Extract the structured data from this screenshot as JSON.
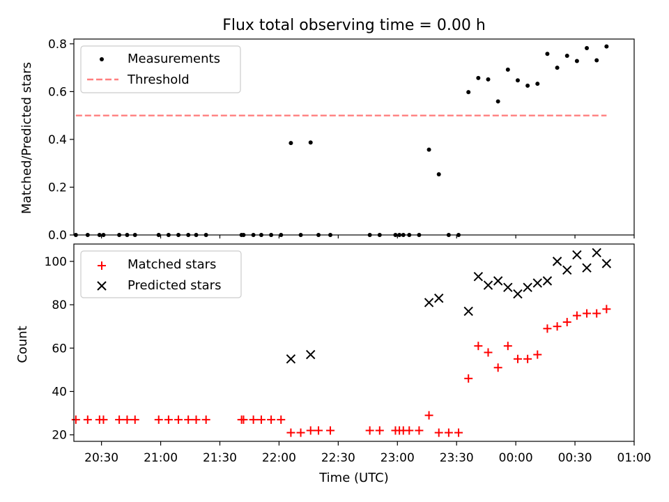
{
  "chart_data": [
    {
      "type": "scatter",
      "title": "Flux total observing time = 0.00 h",
      "ylabel": "Matched/Predicted stars",
      "ylim": [
        0,
        0.82
      ],
      "yticks": [
        0.0,
        0.2,
        0.4,
        0.6,
        0.8
      ],
      "ytick_labels": [
        "0.0",
        "0.2",
        "0.4",
        "0.6",
        "0.8"
      ],
      "legend_position": "upper left",
      "legend": [
        "Measurements",
        "Threshold"
      ],
      "series": [
        {
          "name": "Measurements",
          "marker": "dot",
          "color": "#000000",
          "points": [
            [
              "20:17",
              0
            ],
            [
              "20:23",
              0
            ],
            [
              "20:29",
              0
            ],
            [
              "20:31",
              0
            ],
            [
              "20:39",
              0
            ],
            [
              "20:43",
              0
            ],
            [
              "20:47",
              0
            ],
            [
              "20:59",
              0
            ],
            [
              "21:04",
              0
            ],
            [
              "21:09",
              0
            ],
            [
              "21:14",
              0
            ],
            [
              "21:18",
              0
            ],
            [
              "21:23",
              0
            ],
            [
              "21:41",
              0
            ],
            [
              "21:42",
              0
            ],
            [
              "21:47",
              0
            ],
            [
              "21:51",
              0
            ],
            [
              "21:56",
              0
            ],
            [
              "22:01",
              0
            ],
            [
              "22:06",
              0.385
            ],
            [
              "22:11",
              0
            ],
            [
              "22:16",
              0.387
            ],
            [
              "22:20",
              0
            ],
            [
              "22:26",
              0
            ],
            [
              "22:46",
              0
            ],
            [
              "22:51",
              0
            ],
            [
              "22:59",
              0
            ],
            [
              "23:01",
              0
            ],
            [
              "23:03",
              0
            ],
            [
              "23:06",
              0
            ],
            [
              "23:11",
              0
            ],
            [
              "23:16",
              0.357
            ],
            [
              "23:21",
              0.254
            ],
            [
              "23:26",
              0
            ],
            [
              "23:31",
              0
            ],
            [
              "23:36",
              0.598
            ],
            [
              "23:41",
              0.657
            ],
            [
              "23:46",
              0.651
            ],
            [
              "23:51",
              0.559
            ],
            [
              "23:56",
              0.692
            ],
            [
              "00:01",
              0.647
            ],
            [
              "00:06",
              0.625
            ],
            [
              "00:11",
              0.633
            ],
            [
              "00:16",
              0.758
            ],
            [
              "00:21",
              0.7
            ],
            [
              "00:26",
              0.75
            ],
            [
              "00:31",
              0.728
            ],
            [
              "00:36",
              0.782
            ],
            [
              "00:41",
              0.731
            ],
            [
              "00:46",
              0.789
            ]
          ]
        },
        {
          "name": "Threshold",
          "style": "dashed",
          "color": "#ff7f7f",
          "x": [
            "20:17",
            "00:46"
          ],
          "y": [
            0.5,
            0.5
          ]
        }
      ]
    },
    {
      "type": "scatter",
      "xlabel": "Time (UTC)",
      "ylabel": "Count",
      "ylim": [
        17,
        108
      ],
      "yticks": [
        20,
        40,
        60,
        80,
        100
      ],
      "ytick_labels": [
        "20",
        "40",
        "60",
        "80",
        "100"
      ],
      "xlim": [
        "20:16",
        "01:00"
      ],
      "xticks": [
        "20:30",
        "21:00",
        "21:30",
        "22:00",
        "22:30",
        "23:00",
        "23:30",
        "00:00",
        "00:30",
        "01:00"
      ],
      "legend_position": "upper left",
      "legend": [
        "Matched stars",
        "Predicted stars"
      ],
      "series": [
        {
          "name": "Matched stars",
          "marker": "plus",
          "color": "#ff0000",
          "points": [
            [
              "20:17",
              27
            ],
            [
              "20:23",
              27
            ],
            [
              "20:29",
              27
            ],
            [
              "20:31",
              27
            ],
            [
              "20:39",
              27
            ],
            [
              "20:43",
              27
            ],
            [
              "20:47",
              27
            ],
            [
              "20:59",
              27
            ],
            [
              "21:04",
              27
            ],
            [
              "21:09",
              27
            ],
            [
              "21:14",
              27
            ],
            [
              "21:18",
              27
            ],
            [
              "21:23",
              27
            ],
            [
              "21:41",
              27
            ],
            [
              "21:42",
              27
            ],
            [
              "21:47",
              27
            ],
            [
              "21:51",
              27
            ],
            [
              "21:56",
              27
            ],
            [
              "22:01",
              27
            ],
            [
              "22:06",
              21
            ],
            [
              "22:11",
              21
            ],
            [
              "22:16",
              22
            ],
            [
              "22:20",
              22
            ],
            [
              "22:26",
              22
            ],
            [
              "22:46",
              22
            ],
            [
              "22:51",
              22
            ],
            [
              "22:59",
              22
            ],
            [
              "23:01",
              22
            ],
            [
              "23:03",
              22
            ],
            [
              "23:06",
              22
            ],
            [
              "23:11",
              22
            ],
            [
              "23:16",
              29
            ],
            [
              "23:21",
              21
            ],
            [
              "23:26",
              21
            ],
            [
              "23:31",
              21
            ],
            [
              "23:36",
              46
            ],
            [
              "23:41",
              61
            ],
            [
              "23:46",
              58
            ],
            [
              "23:51",
              51
            ],
            [
              "23:56",
              61
            ],
            [
              "00:01",
              55
            ],
            [
              "00:06",
              55
            ],
            [
              "00:11",
              57
            ],
            [
              "00:16",
              69
            ],
            [
              "00:21",
              70
            ],
            [
              "00:26",
              72
            ],
            [
              "00:31",
              75
            ],
            [
              "00:36",
              76
            ],
            [
              "00:41",
              76
            ],
            [
              "00:46",
              78
            ]
          ]
        },
        {
          "name": "Predicted stars",
          "marker": "x",
          "color": "#000000",
          "points": [
            [
              "22:06",
              55
            ],
            [
              "22:16",
              57
            ],
            [
              "23:16",
              81
            ],
            [
              "23:21",
              83
            ],
            [
              "23:36",
              77
            ],
            [
              "23:41",
              93
            ],
            [
              "23:46",
              89
            ],
            [
              "23:51",
              91
            ],
            [
              "23:56",
              88
            ],
            [
              "00:01",
              85
            ],
            [
              "00:06",
              88
            ],
            [
              "00:11",
              90
            ],
            [
              "00:16",
              91
            ],
            [
              "00:21",
              100
            ],
            [
              "00:26",
              96
            ],
            [
              "00:31",
              103
            ],
            [
              "00:36",
              97
            ],
            [
              "00:41",
              104
            ],
            [
              "00:46",
              99
            ]
          ]
        }
      ]
    }
  ]
}
